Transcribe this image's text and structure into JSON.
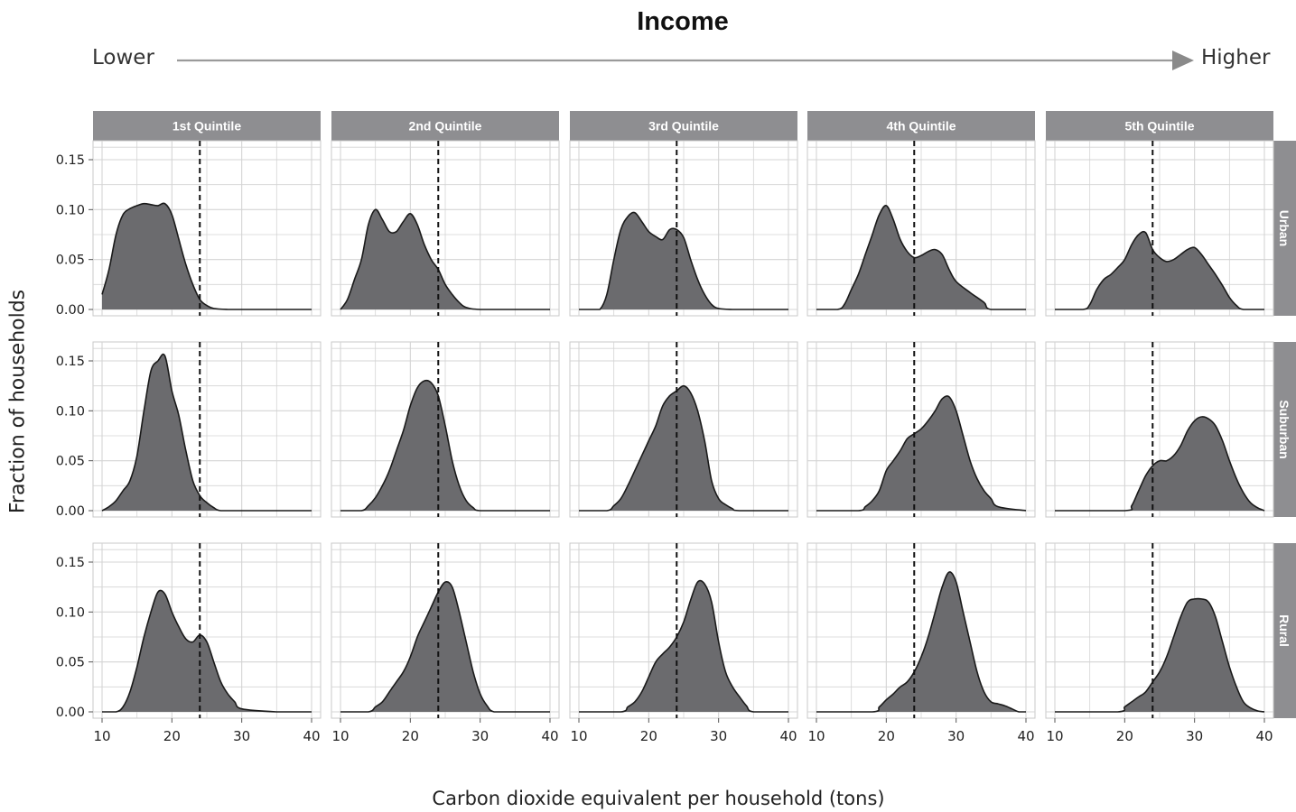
{
  "figure": {
    "title": "Income",
    "income_low_label": "Lower",
    "income_high_label": "Higher",
    "xlabel": "Carbon dioxide equivalent per household (tons)",
    "ylabel": "Fraction of households"
  },
  "colors": {
    "fill": "#6b6b6e",
    "line": "#1a1a1a",
    "strip": "#8e8e91",
    "grid": "#d4d4d4",
    "arrow": "#9a9a9a"
  },
  "chart_data": {
    "type": "area",
    "facet_cols": [
      "1st Quintile",
      "2nd Quintile",
      "3rd Quintile",
      "4th Quintile",
      "5th Quintile"
    ],
    "facet_rows": [
      "Urban",
      "Suburban",
      "Rural"
    ],
    "x_ticks": [
      10,
      20,
      30,
      40
    ],
    "y_ticks": [
      "0.00",
      "0.05",
      "0.10",
      "0.15"
    ],
    "xlim": [
      10,
      40
    ],
    "ylim": [
      0,
      0.16
    ],
    "reference_line_x": 24,
    "grid": true,
    "panels": [
      [
        {
          "x": [
            10,
            11,
            12,
            13,
            14,
            15,
            16,
            17,
            18,
            19,
            20,
            21,
            22,
            23,
            24,
            25,
            26,
            28,
            30,
            35,
            40
          ],
          "y": [
            0.015,
            0.04,
            0.075,
            0.095,
            0.101,
            0.104,
            0.106,
            0.105,
            0.104,
            0.106,
            0.095,
            0.07,
            0.045,
            0.025,
            0.01,
            0.004,
            0.001,
            0,
            0,
            0,
            0
          ]
        },
        {
          "x": [
            10,
            11,
            12,
            13,
            14,
            15,
            16,
            17,
            18,
            19,
            20,
            21,
            22,
            23,
            24,
            25,
            26,
            27,
            28,
            30,
            35,
            40
          ],
          "y": [
            0,
            0.01,
            0.03,
            0.05,
            0.085,
            0.1,
            0.09,
            0.078,
            0.078,
            0.088,
            0.096,
            0.085,
            0.065,
            0.05,
            0.04,
            0.025,
            0.015,
            0.007,
            0.002,
            0,
            0,
            0
          ]
        },
        {
          "x": [
            10,
            12,
            13,
            14,
            15,
            16,
            17,
            18,
            19,
            20,
            21,
            22,
            23,
            24,
            25,
            26,
            27,
            28,
            29,
            30,
            32,
            35,
            40
          ],
          "y": [
            0,
            0,
            0,
            0.015,
            0.05,
            0.08,
            0.093,
            0.097,
            0.088,
            0.078,
            0.073,
            0.07,
            0.08,
            0.08,
            0.072,
            0.05,
            0.03,
            0.015,
            0.005,
            0.001,
            0,
            0,
            0
          ]
        },
        {
          "x": [
            10,
            13,
            14,
            15,
            16,
            17,
            18,
            19,
            20,
            21,
            22,
            23,
            24,
            25,
            26,
            27,
            28,
            29,
            30,
            32,
            34,
            35,
            40
          ],
          "y": [
            0,
            0,
            0.005,
            0.02,
            0.035,
            0.055,
            0.075,
            0.095,
            0.104,
            0.09,
            0.07,
            0.058,
            0.052,
            0.054,
            0.058,
            0.06,
            0.055,
            0.04,
            0.028,
            0.017,
            0.007,
            0,
            0
          ]
        },
        {
          "x": [
            10,
            14,
            15,
            16,
            17,
            18,
            19,
            20,
            21,
            22,
            23,
            24,
            25,
            26,
            27,
            28,
            29,
            30,
            31,
            32,
            33,
            34,
            35,
            36,
            37,
            40
          ],
          "y": [
            0,
            0,
            0.005,
            0.02,
            0.03,
            0.035,
            0.042,
            0.05,
            0.065,
            0.075,
            0.077,
            0.06,
            0.052,
            0.048,
            0.05,
            0.055,
            0.06,
            0.062,
            0.055,
            0.045,
            0.035,
            0.024,
            0.012,
            0.004,
            0,
            0
          ]
        }
      ],
      [
        {
          "x": [
            10,
            11,
            12,
            13,
            14,
            15,
            16,
            17,
            18,
            19,
            20,
            21,
            22,
            23,
            24,
            25,
            26,
            27,
            30,
            40
          ],
          "y": [
            0,
            0.004,
            0.01,
            0.02,
            0.03,
            0.055,
            0.1,
            0.14,
            0.15,
            0.155,
            0.12,
            0.095,
            0.06,
            0.03,
            0.015,
            0.008,
            0.003,
            0,
            0,
            0
          ]
        },
        {
          "x": [
            10,
            13,
            14,
            15,
            16,
            17,
            18,
            19,
            20,
            21,
            22,
            23,
            24,
            25,
            26,
            27,
            28,
            29,
            30,
            35,
            40
          ],
          "y": [
            0,
            0,
            0.005,
            0.013,
            0.025,
            0.04,
            0.06,
            0.08,
            0.105,
            0.123,
            0.13,
            0.128,
            0.115,
            0.085,
            0.05,
            0.025,
            0.01,
            0.003,
            0,
            0,
            0
          ]
        },
        {
          "x": [
            10,
            14,
            15,
            16,
            17,
            18,
            19,
            20,
            21,
            22,
            23,
            24,
            25,
            26,
            27,
            28,
            29,
            30,
            31,
            32,
            33,
            40
          ],
          "y": [
            0,
            0,
            0.005,
            0.012,
            0.025,
            0.04,
            0.055,
            0.07,
            0.085,
            0.105,
            0.115,
            0.12,
            0.125,
            0.118,
            0.1,
            0.07,
            0.03,
            0.012,
            0.006,
            0.002,
            0,
            0
          ]
        },
        {
          "x": [
            10,
            16,
            17,
            18,
            19,
            20,
            21,
            22,
            23,
            24,
            25,
            26,
            27,
            28,
            29,
            30,
            31,
            32,
            33,
            34,
            35,
            36,
            40
          ],
          "y": [
            0,
            0,
            0.004,
            0.01,
            0.02,
            0.04,
            0.05,
            0.06,
            0.072,
            0.077,
            0.082,
            0.09,
            0.1,
            0.112,
            0.114,
            0.1,
            0.075,
            0.05,
            0.032,
            0.02,
            0.012,
            0.004,
            0
          ]
        },
        {
          "x": [
            10,
            20,
            21,
            22,
            23,
            24,
            25,
            26,
            27,
            28,
            29,
            30,
            31,
            32,
            33,
            34,
            35,
            36,
            37,
            38,
            39,
            40
          ],
          "y": [
            0,
            0,
            0.005,
            0.02,
            0.035,
            0.045,
            0.05,
            0.05,
            0.055,
            0.065,
            0.08,
            0.09,
            0.094,
            0.092,
            0.085,
            0.07,
            0.05,
            0.032,
            0.018,
            0.008,
            0.003,
            0
          ]
        }
      ],
      [
        {
          "x": [
            10,
            12,
            13,
            14,
            15,
            16,
            17,
            18,
            19,
            20,
            21,
            22,
            23,
            24,
            25,
            26,
            27,
            28,
            29,
            30,
            35,
            40
          ],
          "y": [
            0,
            0,
            0.005,
            0.02,
            0.045,
            0.075,
            0.1,
            0.12,
            0.118,
            0.1,
            0.085,
            0.073,
            0.07,
            0.077,
            0.07,
            0.05,
            0.03,
            0.018,
            0.01,
            0.003,
            0,
            0
          ]
        },
        {
          "x": [
            10,
            14,
            15,
            16,
            17,
            18,
            19,
            20,
            21,
            22,
            23,
            24,
            25,
            26,
            27,
            28,
            29,
            30,
            31,
            32,
            35,
            40
          ],
          "y": [
            0,
            0,
            0.005,
            0.01,
            0.02,
            0.03,
            0.04,
            0.055,
            0.075,
            0.09,
            0.105,
            0.12,
            0.13,
            0.125,
            0.1,
            0.07,
            0.04,
            0.018,
            0.006,
            0,
            0,
            0
          ]
        },
        {
          "x": [
            10,
            16,
            17,
            18,
            19,
            20,
            21,
            22,
            23,
            24,
            25,
            26,
            27,
            28,
            29,
            30,
            31,
            32,
            33,
            34,
            35,
            40
          ],
          "y": [
            0,
            0,
            0.005,
            0.01,
            0.02,
            0.035,
            0.05,
            0.058,
            0.065,
            0.075,
            0.09,
            0.112,
            0.13,
            0.128,
            0.11,
            0.07,
            0.04,
            0.025,
            0.015,
            0.006,
            0,
            0
          ]
        },
        {
          "x": [
            10,
            18,
            19,
            20,
            21,
            22,
            23,
            24,
            25,
            26,
            27,
            28,
            29,
            30,
            31,
            32,
            33,
            34,
            35,
            36,
            37,
            38,
            39,
            40
          ],
          "y": [
            0,
            0,
            0.005,
            0.012,
            0.018,
            0.025,
            0.03,
            0.04,
            0.055,
            0.075,
            0.1,
            0.125,
            0.14,
            0.13,
            0.1,
            0.07,
            0.04,
            0.02,
            0.01,
            0.008,
            0.006,
            0.003,
            0,
            0
          ]
        },
        {
          "x": [
            10,
            19,
            20,
            21,
            22,
            23,
            24,
            25,
            26,
            27,
            28,
            29,
            30,
            31,
            32,
            33,
            34,
            35,
            36,
            37,
            38,
            39,
            40
          ],
          "y": [
            0,
            0,
            0.005,
            0.01,
            0.015,
            0.02,
            0.03,
            0.04,
            0.055,
            0.075,
            0.095,
            0.11,
            0.113,
            0.113,
            0.11,
            0.095,
            0.07,
            0.045,
            0.025,
            0.01,
            0.004,
            0.001,
            0
          ]
        }
      ]
    ]
  }
}
